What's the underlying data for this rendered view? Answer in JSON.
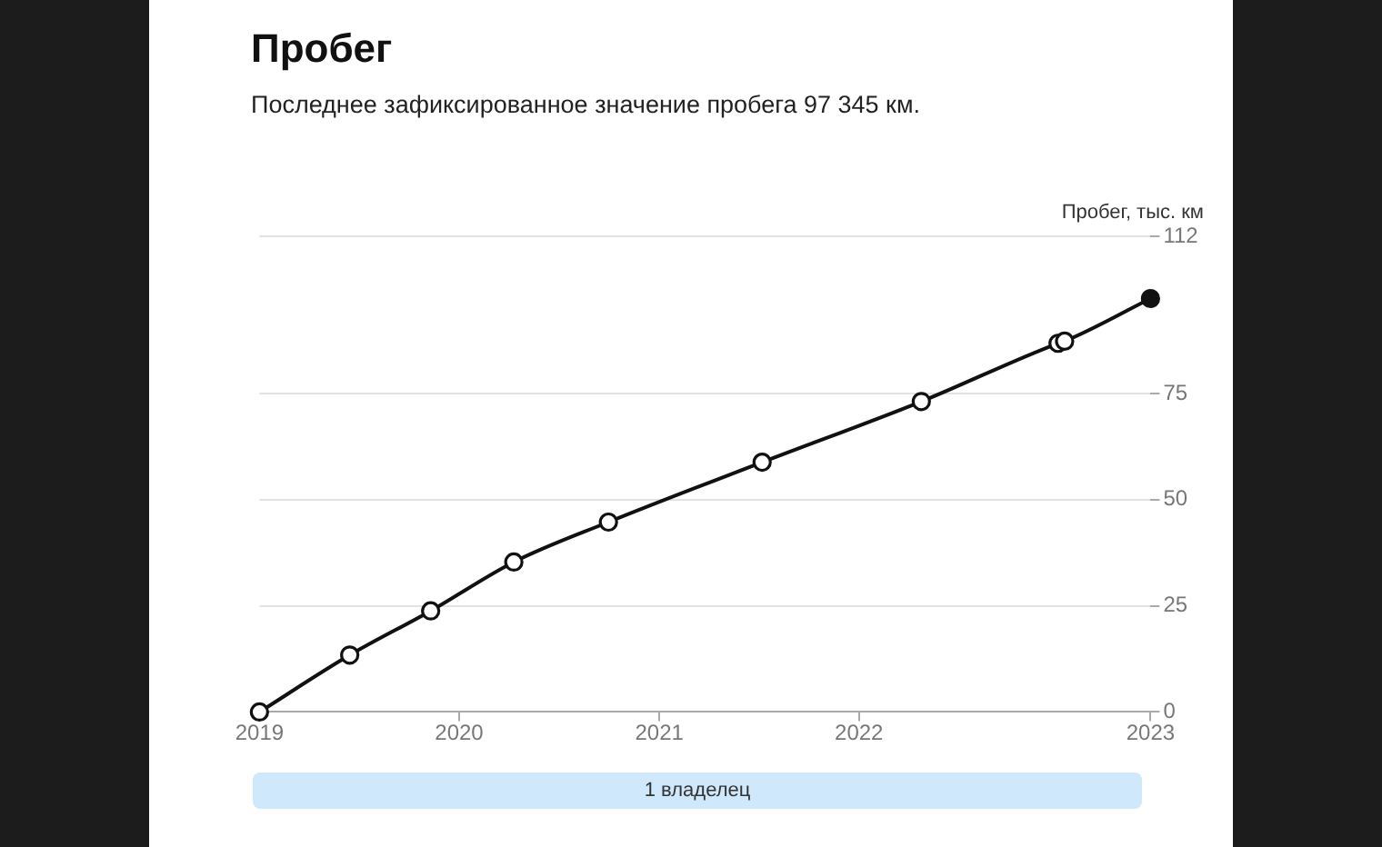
{
  "chart_data": {
    "type": "line",
    "title": "Пробег",
    "subtitle": "Последнее зафиксированное значение пробега 97 345 км.",
    "ylabel": "Пробег, тыс. км",
    "annotations": [
      "1 владелец"
    ],
    "x": [
      "2019-01-01",
      "2019-06-15",
      "2019-11-10",
      "2020-04-10",
      "2020-09-30",
      "2021-07-08",
      "2022-04-25",
      "2022-12-31",
      "2023-01-12",
      "2023-06-18"
    ],
    "series": [
      {
        "color": "#111111",
        "colors": [
          "#ffffff",
          "#ffffff",
          "#ffffff",
          "#ffffff",
          "#ffffff",
          "#ffffff",
          "#ffffff",
          "#ffffff",
          "#ffffff",
          "#111111"
        ],
        "values": [
          0,
          13.4,
          23.8,
          35.3,
          44.7,
          58.8,
          73.1,
          86.8,
          87.3,
          97.345
        ]
      }
    ],
    "xlim": [
      "2019-01-01",
      "2023-06-18"
    ],
    "xticks": [
      "2019",
      "2020",
      "2021",
      "2022",
      {
        "value": "2023-06-18",
        "label": "2023"
      }
    ],
    "ylim": [
      0,
      112
    ],
    "yticks": [
      0,
      25,
      50,
      75,
      112
    ],
    "grid": "y",
    "marker": "circle",
    "line_style": "solid"
  }
}
